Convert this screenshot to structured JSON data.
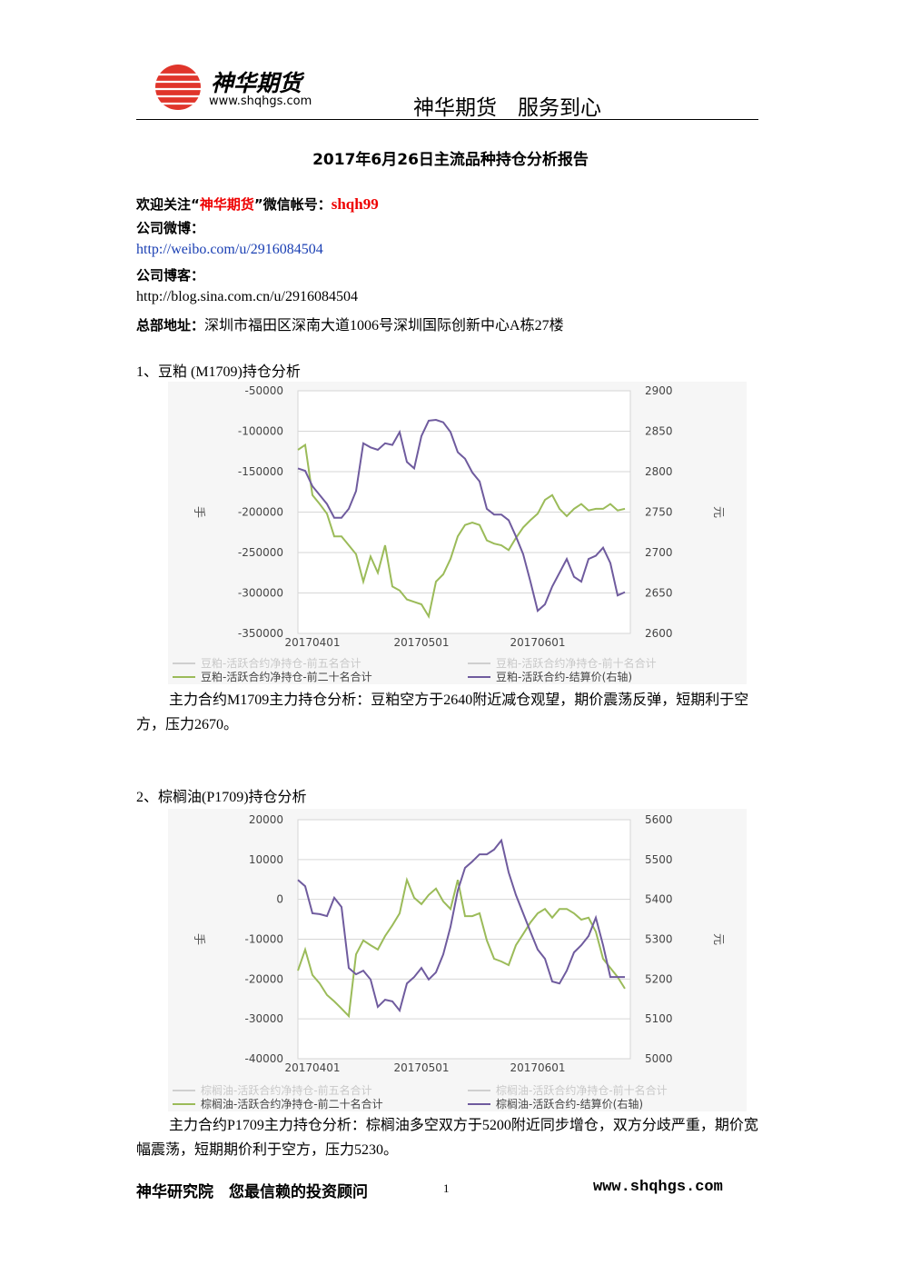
{
  "header": {
    "brand": "神华期货",
    "url": "www.shqhgs.com",
    "slogan": "神华期货　服务到心"
  },
  "title": "2017年6月26日主流品种持仓分析报告",
  "contact": {
    "welcome_prefix": "欢迎关注“",
    "welcome_name": "神华期货",
    "welcome_mid": "”微信帐号：",
    "wechat_id": "shqh99",
    "weibo_label": "公司微博：",
    "weibo_url": "http://weibo.com/u/2916084504",
    "blog_label": "公司博客：",
    "blog_url": "http://blog.sina.com.cn/u/2916084504",
    "address_label": "总部地址：",
    "address": "深圳市福田区深南大道1006号深圳国际创新中心A栋27楼"
  },
  "sections": [
    {
      "heading": "1、豆粕 (M1709)持仓分析",
      "analysis": "主力合约M1709主力持仓分析：豆粕空方于2640附近减仓观望，期价震荡反弹，短期利于空方，压力2670。"
    },
    {
      "heading": "2、棕榈油(P1709)持仓分析",
      "analysis": "主力合约P1709主力持仓分析：棕榈油多空双方于5200附近同步增仓，双方分歧严重，期价宽幅震荡，短期期价利于空方，压力5230。"
    }
  ],
  "footer": {
    "left": "神华研究院　您最信赖的投资顾问",
    "page": "1",
    "url": "www.shqhgs.com"
  },
  "chart_data": [
    {
      "type": "line",
      "y_label": "手",
      "y2_label": "元",
      "categories": [
        null,
        null,
        "20170401",
        null,
        null,
        null,
        null,
        null,
        null,
        null,
        null,
        null,
        null,
        null,
        null,
        null,
        null,
        "20170501",
        null,
        null,
        null,
        null,
        null,
        null,
        null,
        null,
        null,
        null,
        null,
        null,
        null,
        null,
        null,
        "20170601",
        null,
        null,
        null,
        null,
        null,
        null,
        null,
        null,
        null,
        null,
        null,
        null
      ],
      "ylim": [
        -350000,
        -50000
      ],
      "yticks": [
        -50000,
        -100000,
        -150000,
        -200000,
        -250000,
        -300000,
        -350000
      ],
      "y2lim": [
        2600,
        2900
      ],
      "y2ticks": [
        2900,
        2850,
        2800,
        2750,
        2700,
        2650,
        2600
      ],
      "grid": true,
      "series": [
        {
          "name": "豆粕-活跃合约净持仓-前五名合计",
          "color": "#cfcfcf",
          "values": [
            null,
            null,
            null,
            null,
            null,
            null,
            null,
            null,
            null,
            null,
            null,
            null,
            null,
            null,
            null,
            null,
            null,
            null,
            null,
            null,
            null,
            null,
            null,
            null,
            null,
            null,
            null,
            null,
            null,
            null,
            null,
            null,
            null,
            null,
            null,
            null,
            null,
            null,
            null,
            null,
            null,
            null,
            null,
            null,
            null,
            null
          ]
        },
        {
          "name": "豆粕-活跃合约净持仓-前十名合计",
          "color": "#cfcfcf",
          "values": [
            null,
            null,
            null,
            null,
            null,
            null,
            null,
            null,
            null,
            null,
            null,
            null,
            null,
            null,
            null,
            null,
            null,
            null,
            null,
            null,
            null,
            null,
            null,
            null,
            null,
            null,
            null,
            null,
            null,
            null,
            null,
            null,
            null,
            null,
            null,
            null,
            null,
            null,
            null,
            null,
            null,
            null,
            null,
            null,
            null,
            null
          ]
        },
        {
          "name": "豆粕-活跃合约净持仓-前二十名合计",
          "color": "#9bbb59",
          "values": [
            -123000,
            -117000,
            -179000,
            -190000,
            -202000,
            -230000,
            -230000,
            -241000,
            -252000,
            -286000,
            -255000,
            -275000,
            -241000,
            -292000,
            -297000,
            -308000,
            -311000,
            -314000,
            -329000,
            -286000,
            -277000,
            -258000,
            -230000,
            -216000,
            -213000,
            -216000,
            -235000,
            -239000,
            -241000,
            -247000,
            -232000,
            -219000,
            -210000,
            -202000,
            -185000,
            -179000,
            -196000,
            -205000,
            -196000,
            -190000,
            -198000,
            -196000,
            -196000,
            -190000,
            -198000,
            -196000
          ]
        },
        {
          "name": "豆粕-活跃合约-结算价(右轴)",
          "color": "#6f5b9e",
          "axis": "y2",
          "values": [
            2804,
            2801,
            2782,
            2771,
            2760,
            2743,
            2743,
            2754,
            2776,
            2835,
            2830,
            2827,
            2835,
            2833,
            2849,
            2812,
            2804,
            2844,
            2863,
            2864,
            2861,
            2849,
            2824,
            2816,
            2799,
            2788,
            2754,
            2747,
            2747,
            2740,
            2720,
            2698,
            2664,
            2628,
            2636,
            2658,
            2675,
            2692,
            2670,
            2664,
            2692,
            2696,
            2706,
            2687,
            2647,
            2651
          ]
        }
      ]
    },
    {
      "type": "line",
      "y_label": "手",
      "y2_label": "元",
      "categories": [
        null,
        null,
        "20170401",
        null,
        null,
        null,
        null,
        null,
        null,
        null,
        null,
        null,
        null,
        null,
        null,
        null,
        null,
        "20170501",
        null,
        null,
        null,
        null,
        null,
        null,
        null,
        null,
        null,
        null,
        null,
        null,
        null,
        null,
        null,
        "20170601",
        null,
        null,
        null,
        null,
        null,
        null,
        null,
        null,
        null,
        null,
        null,
        null
      ],
      "ylim": [
        -40000,
        20000
      ],
      "yticks": [
        20000,
        10000,
        0,
        -10000,
        -20000,
        -30000,
        -40000
      ],
      "y2lim": [
        5000,
        5600
      ],
      "y2ticks": [
        5600,
        5500,
        5400,
        5300,
        5200,
        5100,
        5000
      ],
      "grid": true,
      "series": [
        {
          "name": "棕榈油-活跃合约净持仓-前五名合计",
          "color": "#cfcfcf",
          "values": [
            null,
            null,
            null,
            null,
            null,
            null,
            null,
            null,
            null,
            null,
            null,
            null,
            null,
            null,
            null,
            null,
            null,
            null,
            null,
            null,
            null,
            null,
            null,
            null,
            null,
            null,
            null,
            null,
            null,
            null,
            null,
            null,
            null,
            null,
            null,
            null,
            null,
            null,
            null,
            null,
            null,
            null,
            null,
            null,
            null,
            null
          ]
        },
        {
          "name": "棕榈油-活跃合约净持仓-前十名合计",
          "color": "#cfcfcf",
          "values": [
            null,
            null,
            null,
            null,
            null,
            null,
            null,
            null,
            null,
            null,
            null,
            null,
            null,
            null,
            null,
            null,
            null,
            null,
            null,
            null,
            null,
            null,
            null,
            null,
            null,
            null,
            null,
            null,
            null,
            null,
            null,
            null,
            null,
            null,
            null,
            null,
            null,
            null,
            null,
            null,
            null,
            null,
            null,
            null,
            null,
            null
          ]
        },
        {
          "name": "棕榈油-活跃合约净持仓-前二十名合计",
          "color": "#9bbb59",
          "values": [
            -17900,
            -12600,
            -19000,
            -21100,
            -24000,
            -25600,
            -27400,
            -29300,
            -13800,
            -10300,
            -11500,
            -12600,
            -9200,
            -6500,
            -3500,
            4900,
            400,
            -1200,
            1100,
            2700,
            -500,
            -2400,
            4900,
            -4200,
            -4200,
            -3500,
            -10300,
            -14900,
            -15600,
            -16500,
            -11500,
            -8700,
            -5800,
            -3500,
            -2400,
            -4600,
            -2400,
            -2400,
            -3500,
            -5100,
            -4600,
            -8100,
            -14900,
            -17200,
            -19500,
            -22400
          ]
        },
        {
          "name": "棕榈油-活跃合约-结算价(右轴)",
          "color": "#6f5b9e",
          "axis": "y2",
          "values": [
            5449,
            5433,
            5365,
            5363,
            5358,
            5404,
            5381,
            5228,
            5212,
            5221,
            5199,
            5130,
            5148,
            5144,
            5121,
            5189,
            5205,
            5228,
            5199,
            5217,
            5262,
            5331,
            5422,
            5479,
            5495,
            5513,
            5513,
            5525,
            5548,
            5468,
            5411,
            5365,
            5319,
            5274,
            5251,
            5194,
            5189,
            5221,
            5267,
            5285,
            5308,
            5354,
            5285,
            5205,
            5205,
            5205
          ]
        }
      ]
    }
  ]
}
